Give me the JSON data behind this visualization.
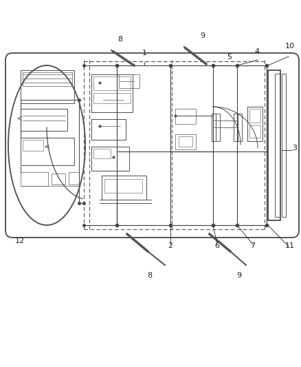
{
  "bg_color": "#ffffff",
  "lc": "#555555",
  "wc": "#444444",
  "cc": "#555555",
  "tc": "#222222",
  "fs": 8,
  "fig_w": 4.39,
  "fig_h": 5.33,
  "dpi": 100
}
